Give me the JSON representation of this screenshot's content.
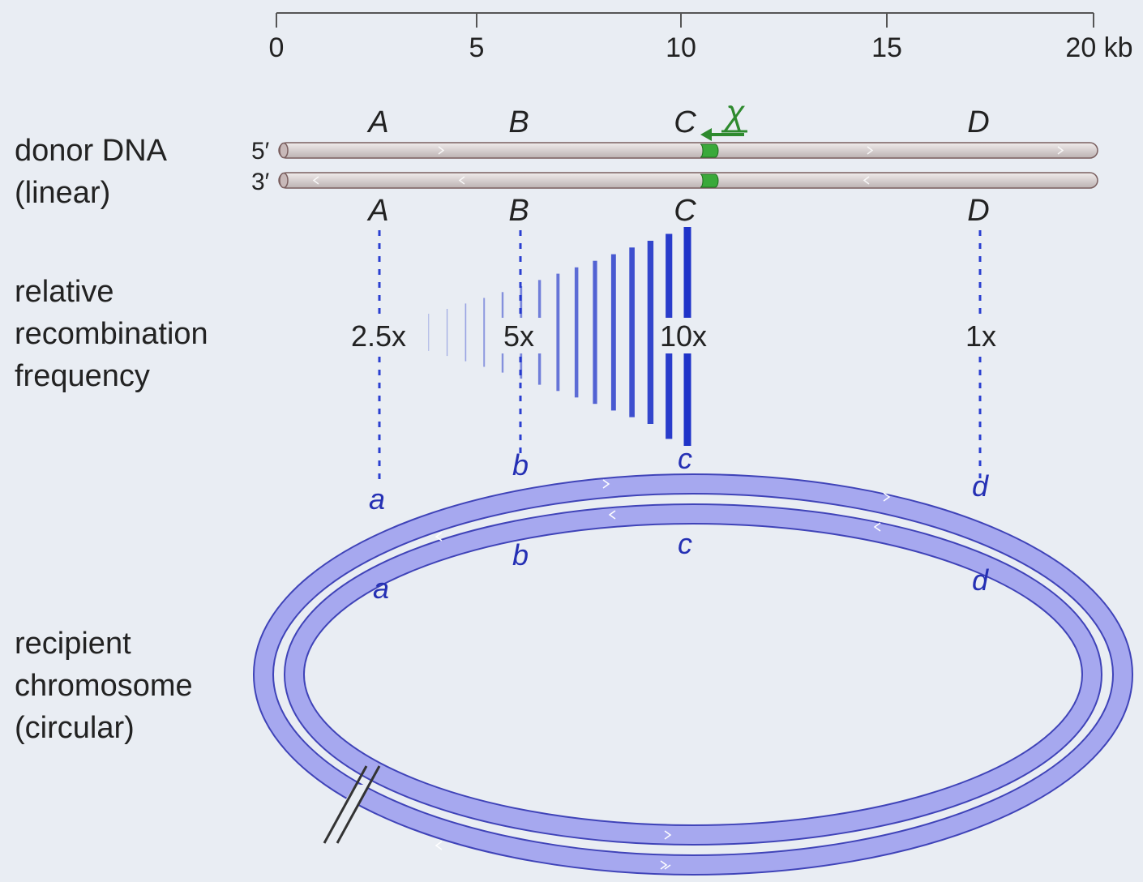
{
  "scale": {
    "ticks": [
      "0",
      "5",
      "10",
      "15",
      "20 kb"
    ]
  },
  "labels": {
    "donor": [
      "donor DNA",
      "(linear)"
    ],
    "frequency": [
      "relative",
      "recombination",
      "frequency"
    ],
    "recipient": [
      "recipient",
      "chromosome",
      "(circular)"
    ]
  },
  "strand_ends": {
    "top": "5′",
    "bottom": "3′"
  },
  "chi": "χ",
  "donor_genes_top": [
    "A",
    "B",
    "C",
    "D"
  ],
  "donor_genes_bottom": [
    "A",
    "B",
    "C",
    "D"
  ],
  "frequencies": [
    "2.5x",
    "5x",
    "10x",
    "1x"
  ],
  "recipient_genes_outer": [
    "a",
    "b",
    "c",
    "d"
  ],
  "recipient_genes_inner": [
    "a",
    "b",
    "c",
    "d"
  ],
  "colors": {
    "donor_strand": "#d9d3d3",
    "chi": "#3aa93a",
    "recipient_strand": "#a6a8ef",
    "frequency_bars": "#1f33c8"
  }
}
